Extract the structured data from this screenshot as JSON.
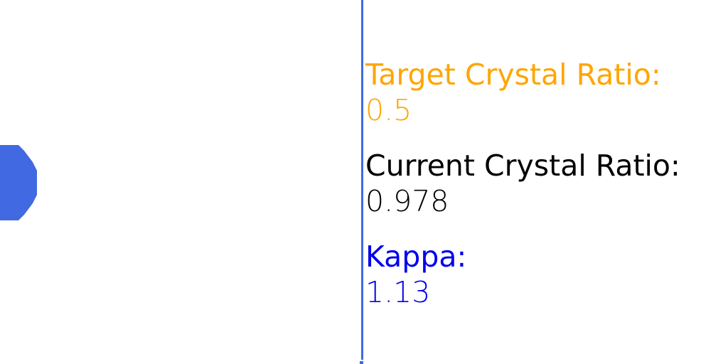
{
  "colors": {
    "divider": "#4169e1",
    "crystal": "#4169e1",
    "target": "#ffa500",
    "current": "#000000",
    "kappa": "#0000ee"
  },
  "readouts": {
    "target": {
      "label": "Target Crystal Ratio:",
      "value": "0.5"
    },
    "current": {
      "label": "Current Crystal Ratio:",
      "value": "0.978"
    },
    "kappa": {
      "label": "Kappa:",
      "value": "1.13"
    }
  },
  "simulation": {
    "target_crystal_ratio": 0.5,
    "current_crystal_ratio": 0.978,
    "kappa": 1.13
  }
}
